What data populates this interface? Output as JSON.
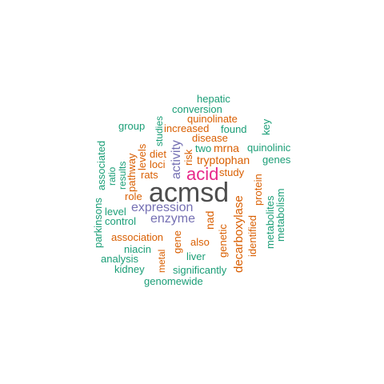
{
  "words": {
    "acmsd": "acmsd",
    "acid": "acid",
    "expression": "expression",
    "enzyme": "enzyme",
    "activity": "activity",
    "tryptophan": "tryptophan",
    "decarboxylase": "decarboxylase",
    "association": "association",
    "mrna": "mrna",
    "increased": "increased",
    "quinolinate": "quinolinate",
    "disease": "disease",
    "diet": "diet",
    "loci": "loci",
    "rats": "rats",
    "study": "study",
    "role": "role",
    "levels": "levels",
    "pathway": "pathway",
    "risk": "risk",
    "nad": "nad",
    "genetic": "genetic",
    "identified": "identified",
    "protein": "protein",
    "gene": "gene",
    "also": "also",
    "metal": "metal",
    "hepatic": "hepatic",
    "conversion": "conversion",
    "group": "group",
    "studies": "studies",
    "found": "found",
    "key": "key",
    "two": "two",
    "quinolinic": "quinolinic",
    "genes": "genes",
    "associated": "associated",
    "ratio": "ratio",
    "results": "results",
    "level": "level",
    "control": "control",
    "parkinsons": "parkinsons",
    "metabolites": "metabolites",
    "metabolism": "metabolism",
    "niacin": "niacin",
    "liver": "liver",
    "analysis": "analysis",
    "kidney": "kidney",
    "significantly": "significantly",
    "genomewide": "genomewide"
  }
}
